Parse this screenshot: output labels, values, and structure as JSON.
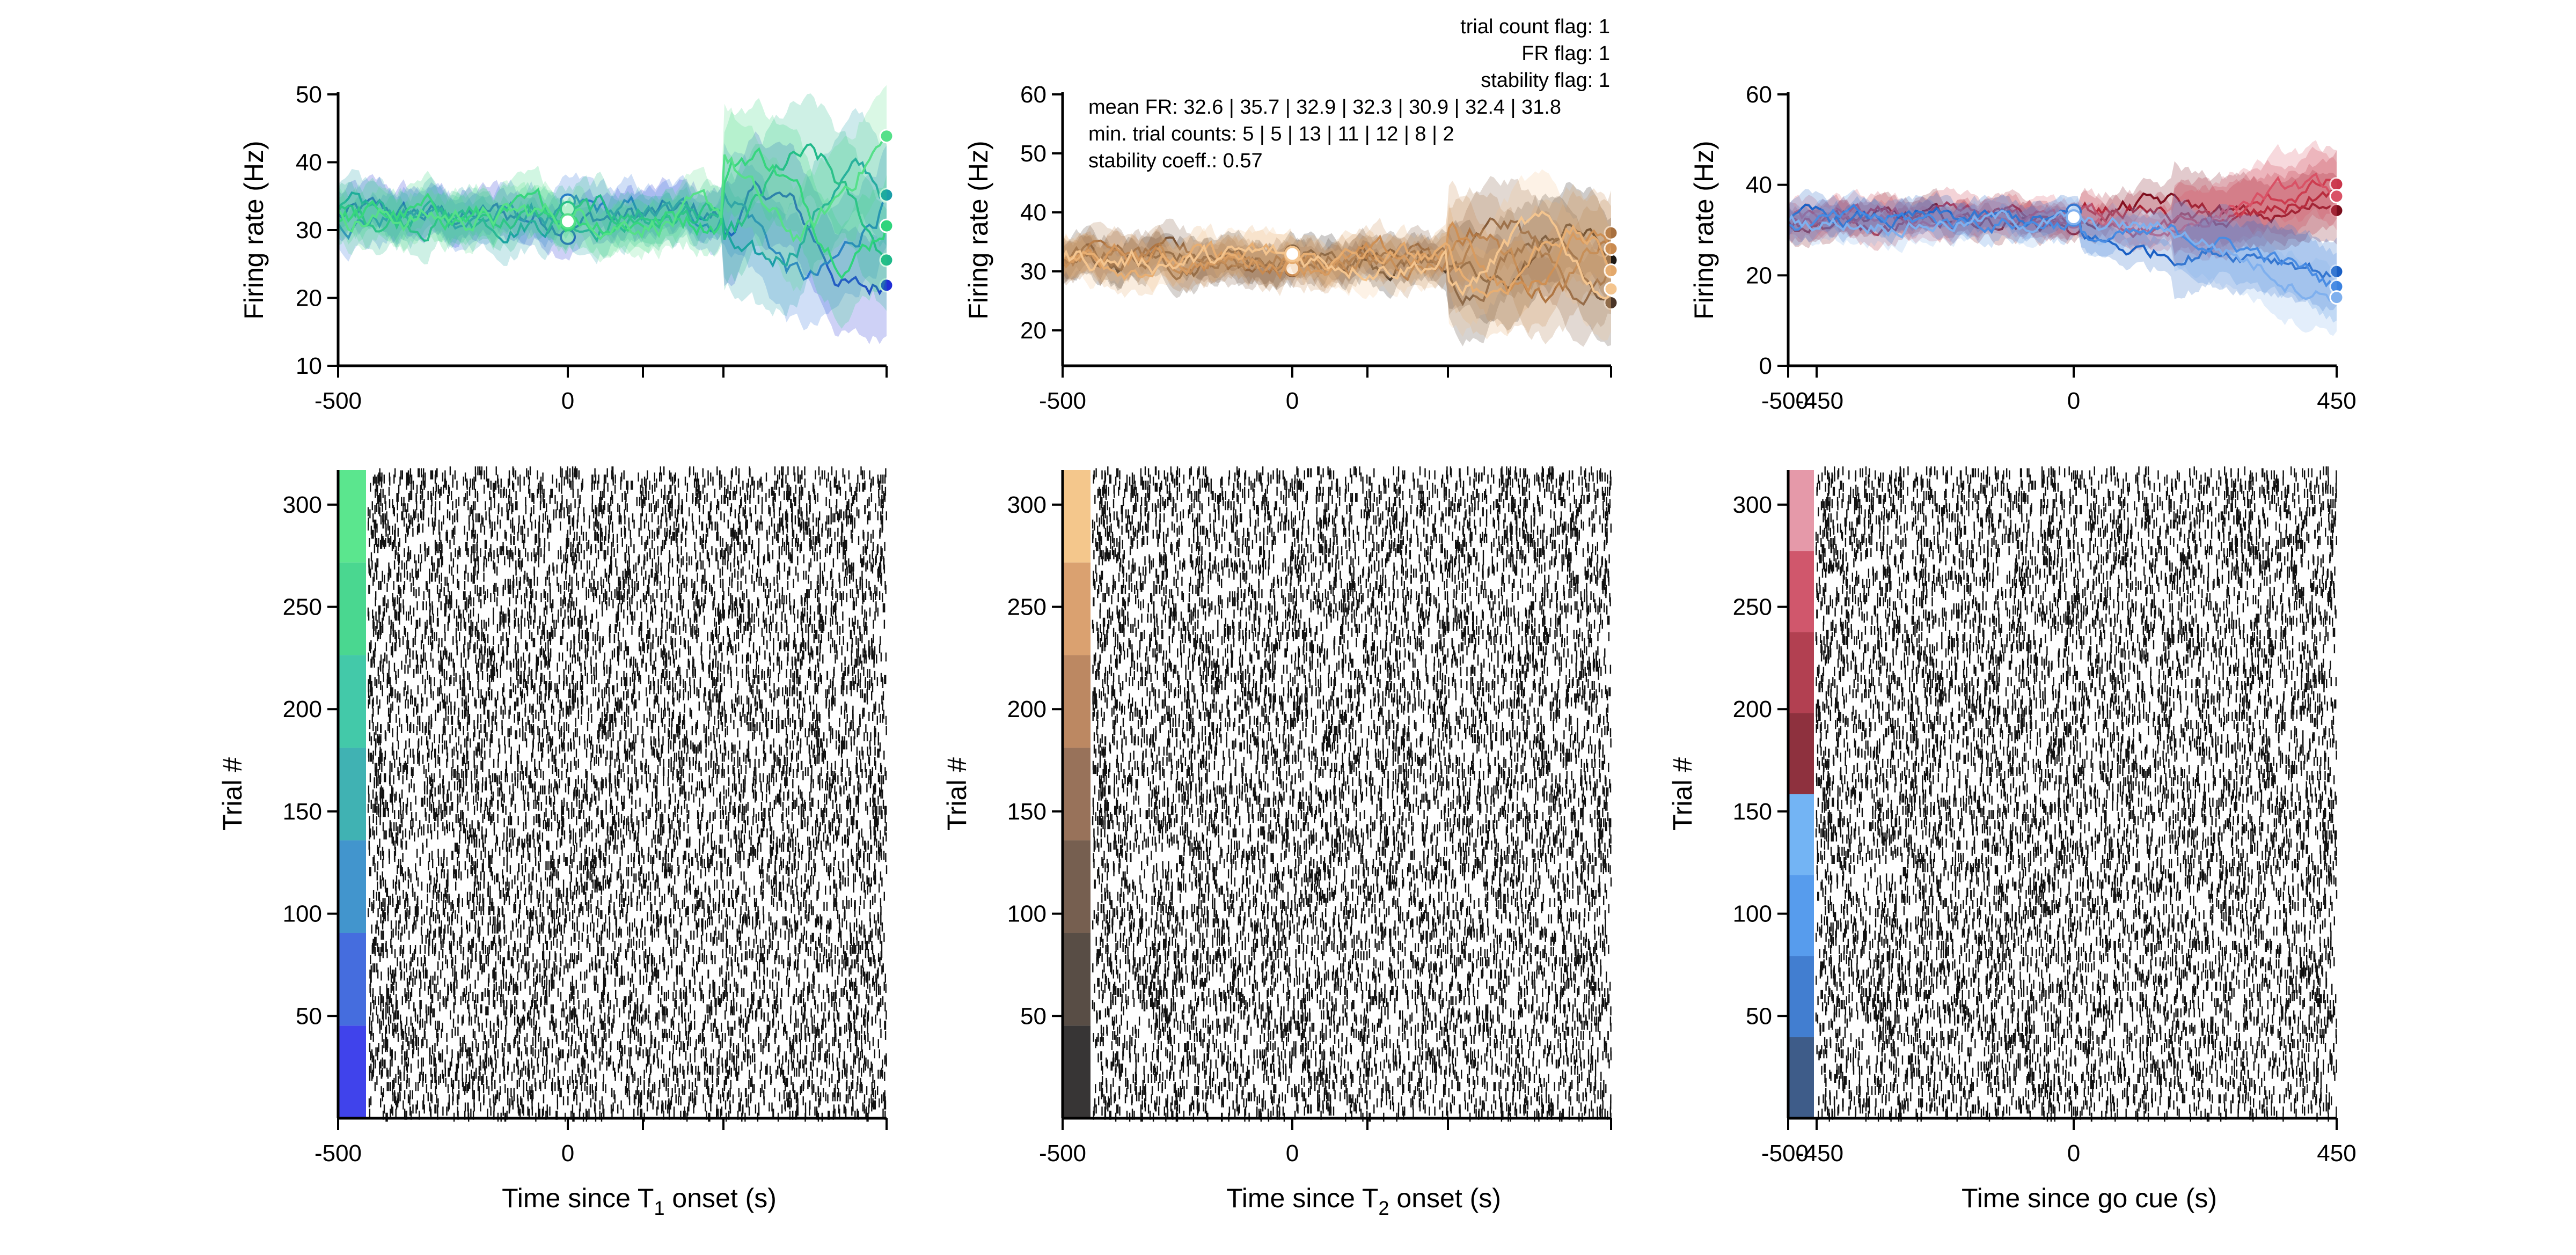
{
  "chart_data": [
    {
      "id": "t1-psth",
      "type": "line",
      "ylabel": "Firing rate (Hz)",
      "xticks": [
        "-500",
        "0"
      ],
      "yticks": [
        "10",
        "20",
        "30",
        "40",
        "50"
      ],
      "ylim": [
        10,
        50
      ],
      "series_colors": [
        "#1f2dd6",
        "#2a6cd9",
        "#1a9ea8",
        "#20b98a",
        "#2fd47c",
        "#55e089"
      ]
    },
    {
      "id": "t2-psth",
      "type": "line",
      "ylabel": "Firing rate (Hz)",
      "xticks": [
        "-500",
        "0"
      ],
      "yticks": [
        "20",
        "30",
        "40",
        "50",
        "60"
      ],
      "ylim": [
        14,
        60
      ],
      "series_colors": [
        "#1e1813",
        "#4a3527",
        "#7a5436",
        "#a8703f",
        "#c98a4f",
        "#e3a86b",
        "#f4c58f"
      ],
      "annotations": {
        "trial_count_flag": "trial count flag: 1",
        "fr_flag": "FR flag: 1",
        "stability_flag": "stability flag: 1",
        "mean_fr": "mean FR: 32.6 | 35.7 | 32.9 | 32.3 | 30.9 | 32.4 | 31.8",
        "min_trial_counts": "min. trial counts: 5 | 5 | 13 | 11 | 12 | 8 | 2",
        "stability_coeff": "stability coeff.: 0.57"
      }
    },
    {
      "id": "go-psth",
      "type": "line",
      "ylabel": "Firing rate (Hz)",
      "xticks": [
        "-500",
        "-450",
        "0",
        "450"
      ],
      "yticks": [
        "0",
        "20",
        "40",
        "60"
      ],
      "ylim": [
        0,
        60
      ],
      "series_colors": [
        "#7a0d1c",
        "#a81c2e",
        "#c9364a",
        "#d95266",
        "#1a5fc4",
        "#3a82e0",
        "#7fb0ee"
      ]
    },
    {
      "id": "t1-raster",
      "type": "scatter",
      "ylabel": "Trial #",
      "xlabel_main": "Time since T",
      "xlabel_sub": "1",
      "xlabel_tail": " onset (s)",
      "xticks": [
        "-500",
        "0"
      ],
      "yticks": [
        "50",
        "100",
        "150",
        "200",
        "250",
        "300"
      ],
      "ylim": [
        0,
        317
      ],
      "n_trials": 317,
      "condition_colors": [
        "#1f22e8",
        "#2454d8",
        "#2183c4",
        "#1ea5a6",
        "#22c09a",
        "#2ad07c",
        "#3ee27a"
      ]
    },
    {
      "id": "t2-raster",
      "type": "scatter",
      "ylabel": "Trial #",
      "xlabel_main": "Time since T",
      "xlabel_sub": "2",
      "xlabel_tail": " onset (s)",
      "xticks": [
        "-500",
        "0"
      ],
      "yticks": [
        "50",
        "100",
        "150",
        "200",
        "250",
        "300"
      ],
      "ylim": [
        0,
        317
      ],
      "n_trials": 317,
      "condition_colors": [
        "#141212",
        "#3b2e24",
        "#5e4331",
        "#86593d",
        "#b07346",
        "#d49057",
        "#f2bd78"
      ]
    },
    {
      "id": "go-raster",
      "type": "scatter",
      "ylabel": "Trial #",
      "xlabel_main": "Time since go cue (s)",
      "xlabel_sub": "",
      "xlabel_tail": "",
      "xticks": [
        "-500",
        "-450",
        "0",
        "450"
      ],
      "yticks": [
        "50",
        "100",
        "150",
        "200",
        "250",
        "300"
      ],
      "ylim": [
        0,
        317
      ],
      "n_trials": 317,
      "condition_colors": [
        "#1c3f74",
        "#2167c8",
        "#3a8bea",
        "#5aa7f2",
        "#7a0d1c",
        "#a51e32",
        "#c83a52",
        "#e1879a"
      ]
    }
  ]
}
